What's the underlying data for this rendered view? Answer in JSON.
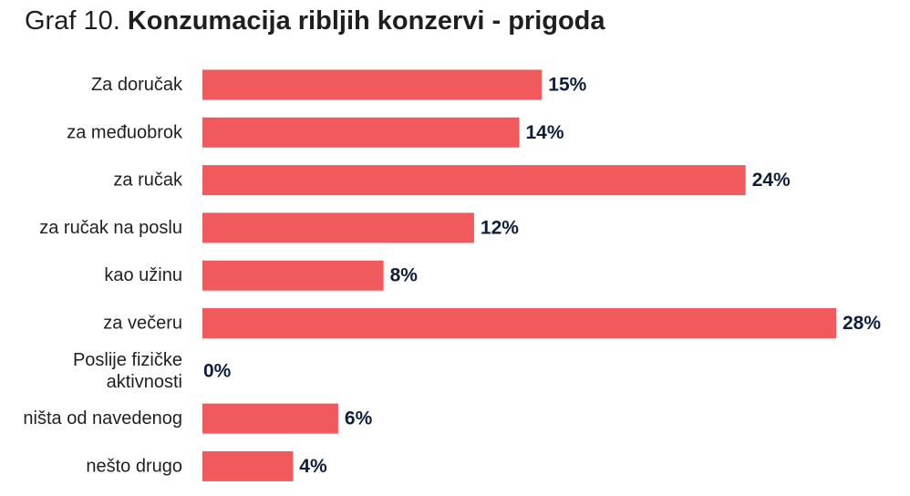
{
  "title_prefix": "Graf 10.",
  "title_main": "Konzumacija ribljih konzervi - prigoda",
  "colors": {
    "bar": "#f05a5c",
    "value_label": "#0f1e3d",
    "category_label": "#1f1f1f"
  },
  "chart_data": {
    "type": "bar",
    "orientation": "horizontal",
    "categories": [
      "Za doručak",
      "za međuobrok",
      "za ručak",
      "za ručak na poslu",
      "kao užinu",
      "za večeru",
      "Poslije fizičke aktivnosti",
      "ništa od navedenog",
      "nešto drugo"
    ],
    "category_label_lines": [
      [
        "Za doručak"
      ],
      [
        "za međuobrok"
      ],
      [
        "za ručak"
      ],
      [
        "za ručak na poslu"
      ],
      [
        "kao užinu"
      ],
      [
        "za večeru"
      ],
      [
        "Poslije fizičke",
        "aktivnosti"
      ],
      [
        "ništa od navedenog"
      ],
      [
        "nešto drugo"
      ]
    ],
    "values": [
      15,
      14,
      24,
      12,
      8,
      28,
      0,
      6,
      4
    ],
    "value_labels": [
      "15%",
      "14%",
      "24%",
      "12%",
      "8%",
      "28%",
      "0%",
      "6%",
      "4%"
    ],
    "unit": "%",
    "xlim": [
      0,
      28
    ],
    "grid": false,
    "legend": false
  }
}
